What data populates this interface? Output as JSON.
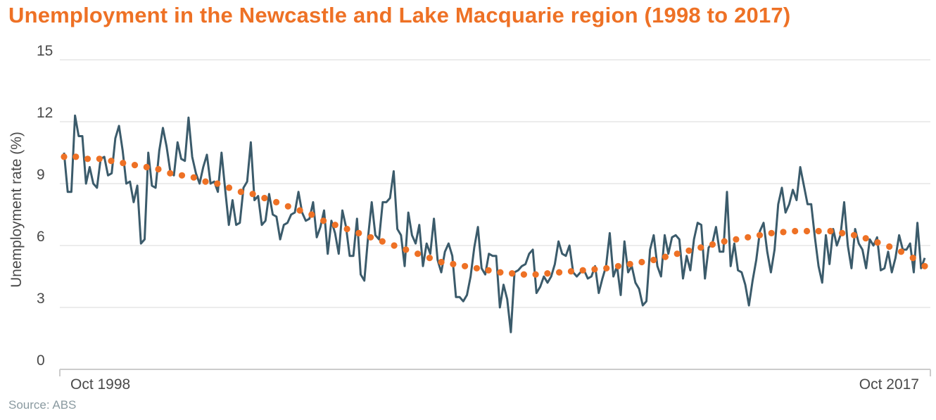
{
  "title": "Unemployment in the Newcastle and Lake Macquarie region (1998 to 2017)",
  "source": "Source: ABS",
  "colors": {
    "title": "#ee7125",
    "series": "#3b5b6b",
    "trend": "#ee7125",
    "grid": "#d9d9d9",
    "text": "#4a4a4a",
    "source": "#8a9aa0"
  },
  "chart_data": {
    "type": "line",
    "title": "Unemployment in the Newcastle and Lake Macquarie region (1998 to 2017)",
    "xlabel": "",
    "ylabel": "Unemployment rate (%)",
    "ylim": [
      0,
      15
    ],
    "yticks": [
      0,
      3,
      6,
      9,
      12,
      15
    ],
    "xticks": [
      "Oct 1998",
      "Oct 2017"
    ],
    "grid": true,
    "legend": "none",
    "x_start": "Oct 1998",
    "x_end": "Oct 2017",
    "frequency": "monthly",
    "series": [
      {
        "style": "line",
        "values": [
          10.5,
          8.6,
          8.6,
          12.3,
          11.3,
          11.3,
          9.0,
          9.8,
          9.0,
          8.8,
          10.2,
          10.3,
          9.4,
          9.5,
          11.2,
          11.8,
          10.6,
          9.0,
          9.1,
          8.1,
          8.9,
          6.1,
          6.3,
          10.5,
          8.9,
          8.8,
          10.6,
          11.7,
          10.8,
          9.6,
          9.4,
          11.0,
          10.2,
          10.1,
          12.2,
          10.3,
          9.5,
          9.0,
          9.8,
          10.4,
          9.0,
          9.1,
          8.6,
          10.5,
          8.7,
          7.0,
          8.2,
          7.0,
          7.1,
          8.8,
          9.1,
          11.0,
          8.2,
          8.4,
          7.0,
          7.2,
          8.5,
          7.5,
          7.4,
          6.3,
          7.0,
          7.1,
          7.5,
          7.6,
          8.6,
          7.6,
          7.2,
          7.3,
          8.1,
          6.4,
          6.9,
          7.7,
          5.6,
          7.2,
          6.6,
          5.6,
          7.7,
          6.9,
          5.5,
          5.5,
          7.3,
          4.6,
          4.3,
          6.4,
          8.1,
          6.5,
          6.3,
          8.1,
          8.1,
          8.3,
          9.6,
          6.8,
          6.5,
          5.0,
          7.6,
          6.5,
          6.1,
          7.0,
          5.0,
          6.1,
          5.6,
          7.3,
          5.3,
          4.7,
          5.7,
          6.1,
          5.5,
          3.5,
          3.5,
          3.3,
          3.6,
          4.5,
          5.9,
          6.9,
          4.9,
          4.6,
          5.6,
          5.5,
          5.5,
          3.0,
          4.1,
          3.4,
          1.8,
          4.7,
          4.8,
          5.0,
          5.1,
          5.6,
          5.8,
          3.7,
          4.0,
          4.5,
          4.2,
          4.5,
          5.1,
          6.2,
          5.6,
          5.5,
          6.0,
          4.7,
          4.5,
          4.7,
          4.8,
          4.4,
          4.5,
          5.0,
          3.7,
          4.4,
          5.0,
          6.6,
          4.5,
          5.0,
          3.6,
          6.2,
          4.7,
          5.0,
          4.2,
          3.9,
          3.1,
          3.3,
          5.8,
          6.5,
          5.0,
          4.5,
          6.5,
          5.6,
          6.4,
          6.5,
          6.3,
          4.4,
          5.5,
          4.8,
          6.3,
          7.1,
          7.0,
          4.4,
          5.9,
          6.1,
          6.9,
          5.7,
          5.7,
          8.6,
          5.0,
          6.1,
          4.8,
          4.7,
          4.1,
          3.1,
          4.3,
          5.3,
          6.7,
          7.1,
          5.7,
          4.7,
          5.8,
          8.0,
          8.8,
          7.6,
          8.0,
          8.7,
          8.2,
          9.8,
          8.9,
          8.0,
          8.0,
          6.4,
          5.0,
          4.2,
          6.5,
          5.1,
          6.8,
          6.0,
          6.5,
          8.1,
          6.0,
          4.9,
          6.8,
          6.1,
          5.8,
          4.9,
          6.3,
          6.0,
          6.4,
          4.8,
          4.9,
          5.7,
          4.7,
          5.4,
          6.5,
          5.8,
          5.8,
          6.1,
          4.7,
          7.1,
          4.9,
          5.4
        ]
      },
      {
        "style": "dotted",
        "values": [
          10.3,
          10.3,
          10.2,
          10.2,
          10.1,
          10.0,
          9.9,
          9.8,
          9.7,
          9.5,
          9.4,
          9.3,
          9.1,
          9.0,
          8.8,
          8.6,
          8.5,
          8.3,
          8.1,
          7.9,
          7.7,
          7.5,
          7.2,
          7.0,
          6.8,
          6.6,
          6.4,
          6.2,
          6.0,
          5.8,
          5.6,
          5.4,
          5.2,
          5.1,
          5.0,
          4.9,
          4.8,
          4.7,
          4.65,
          4.6,
          4.6,
          4.65,
          4.7,
          4.75,
          4.8,
          4.85,
          4.9,
          5.0,
          5.1,
          5.2,
          5.3,
          5.45,
          5.6,
          5.75,
          5.9,
          6.05,
          6.2,
          6.3,
          6.4,
          6.5,
          6.6,
          6.65,
          6.7,
          6.7,
          6.7,
          6.7,
          6.6,
          6.5,
          6.35,
          6.15,
          5.95,
          5.7,
          5.4,
          5.0
        ]
      }
    ]
  }
}
